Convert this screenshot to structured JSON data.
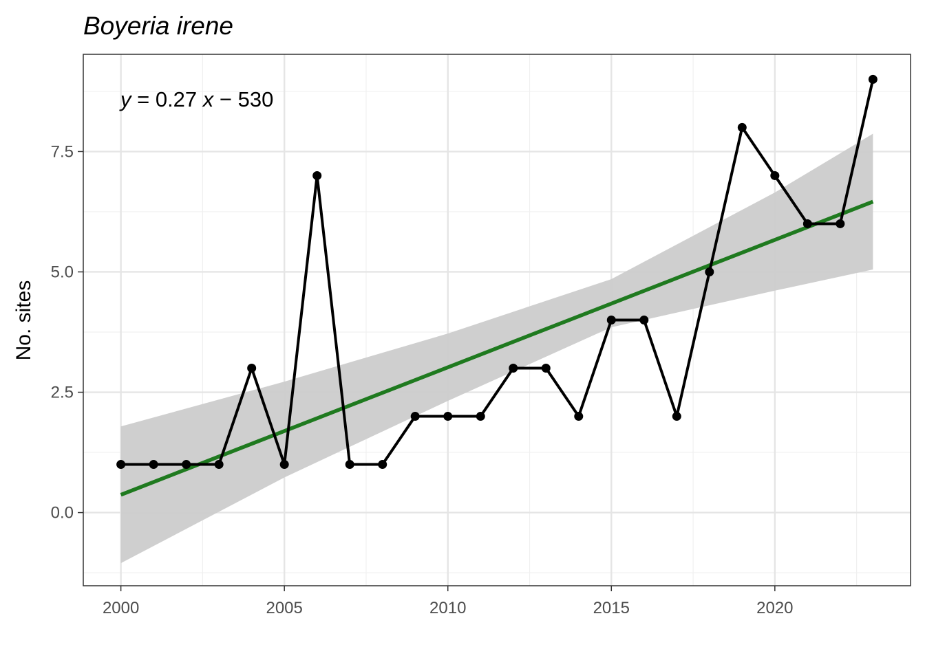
{
  "chart_data": {
    "type": "line",
    "title": "Boyeria irene",
    "xlabel": "",
    "ylabel": "No. sites",
    "equation": {
      "y": "y",
      "middle": " = 0.27 ",
      "x": "x",
      "tail": " − 530"
    },
    "x": [
      2000,
      2001,
      2002,
      2003,
      2004,
      2005,
      2006,
      2007,
      2008,
      2009,
      2010,
      2011,
      2012,
      2013,
      2014,
      2015,
      2016,
      2017,
      2018,
      2019,
      2020,
      2021,
      2022,
      2023
    ],
    "series": [
      {
        "values": [
          1,
          1,
          1,
          1,
          3,
          1,
          7,
          1,
          1,
          2,
          2,
          2,
          3,
          3,
          2,
          4,
          4,
          2,
          5,
          8,
          7,
          6,
          6,
          9
        ]
      }
    ],
    "trend": {
      "start": [
        2000,
        0.37
      ],
      "end": [
        2023,
        6.46
      ]
    },
    "confidence_band": {
      "x": [
        2000,
        2005,
        2010,
        2015,
        2020,
        2023
      ],
      "upper": [
        1.79,
        2.72,
        3.72,
        4.85,
        6.65,
        7.87
      ],
      "lower": [
        -1.05,
        0.73,
        2.32,
        3.85,
        4.61,
        5.05
      ]
    },
    "xticks": [
      2000,
      2005,
      2010,
      2015,
      2020
    ],
    "xtick_labels": [
      "2000",
      "2005",
      "2010",
      "2015",
      "2020"
    ],
    "yticks": [
      0,
      2.5,
      5,
      7.5
    ],
    "ytick_labels": [
      "0.0",
      "2.5",
      "5.0",
      "7.5"
    ],
    "xlim": [
      1998.85,
      2024.15
    ],
    "ylim": [
      -1.52,
      9.52
    ],
    "grid": true,
    "colors": {
      "line": "#000000",
      "trend": "#1f7a1f",
      "band": "#cccccc",
      "grid_major": "#e5e5e5",
      "grid_minor": "#f0f0f0"
    }
  }
}
